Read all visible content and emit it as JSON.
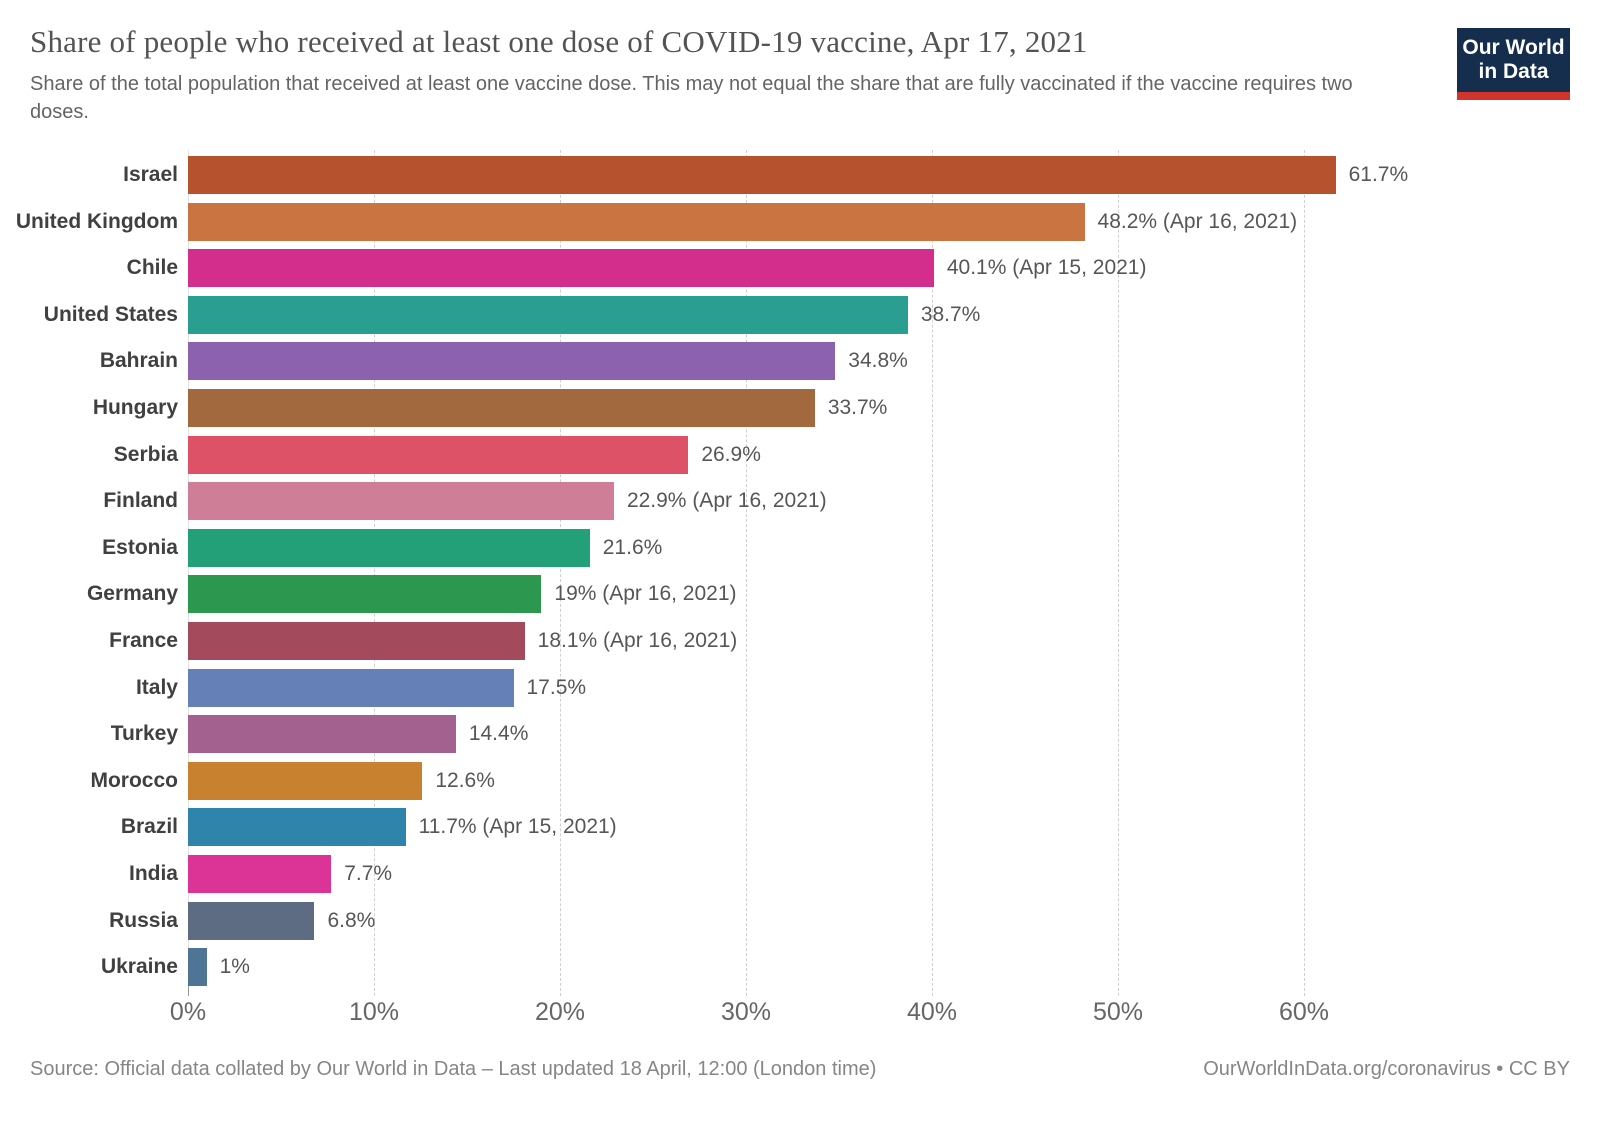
{
  "header": {
    "title": "Share of people who received at least one dose of COVID-19 vaccine, Apr 17, 2021",
    "subtitle": "Share of the total population that received at least one vaccine dose. This may not equal the share that are fully vaccinated if the vaccine requires two doses.",
    "logo": {
      "line1": "Our World",
      "line2": "in Data",
      "bg_color": "#152e4e",
      "accent_color": "#d0342c"
    }
  },
  "chart_data": {
    "type": "bar",
    "orientation": "horizontal",
    "title": "Share of people who received at least one dose of COVID-19 vaccine, Apr 17, 2021",
    "xlabel": "",
    "ylabel": "",
    "xlim": [
      0,
      65
    ],
    "grid": "vertical-dashed",
    "x_axis": {
      "tick_labels": [
        "0%",
        "10%",
        "20%",
        "30%",
        "40%",
        "50%",
        "60%"
      ],
      "tick_values": [
        0,
        10,
        20,
        30,
        40,
        50,
        60
      ]
    },
    "bars": [
      {
        "label": "Israel",
        "value": 61.7,
        "value_label": "61.7%",
        "color": "#b6532e"
      },
      {
        "label": "United Kingdom",
        "value": 48.2,
        "value_label": "48.2% (Apr 16, 2021)",
        "color": "#ca7441"
      },
      {
        "label": "Chile",
        "value": 40.1,
        "value_label": "40.1% (Apr 15, 2021)",
        "color": "#d42e8d"
      },
      {
        "label": "United States",
        "value": 38.7,
        "value_label": "38.7%",
        "color": "#2b9e92"
      },
      {
        "label": "Bahrain",
        "value": 34.8,
        "value_label": "34.8%",
        "color": "#8c62ae"
      },
      {
        "label": "Hungary",
        "value": 33.7,
        "value_label": "33.7%",
        "color": "#a2693f"
      },
      {
        "label": "Serbia",
        "value": 26.9,
        "value_label": "26.9%",
        "color": "#dd5266"
      },
      {
        "label": "Finland",
        "value": 22.9,
        "value_label": "22.9% (Apr 16, 2021)",
        "color": "#ce7e97"
      },
      {
        "label": "Estonia",
        "value": 21.6,
        "value_label": "21.6%",
        "color": "#23a077"
      },
      {
        "label": "Germany",
        "value": 19,
        "value_label": "19% (Apr 16, 2021)",
        "color": "#2c974e"
      },
      {
        "label": "France",
        "value": 18.1,
        "value_label": "18.1% (Apr 16, 2021)",
        "color": "#a34b5c"
      },
      {
        "label": "Italy",
        "value": 17.5,
        "value_label": "17.5%",
        "color": "#6480b7"
      },
      {
        "label": "Turkey",
        "value": 14.4,
        "value_label": "14.4%",
        "color": "#a2618e"
      },
      {
        "label": "Morocco",
        "value": 12.6,
        "value_label": "12.6%",
        "color": "#c8822f"
      },
      {
        "label": "Brazil",
        "value": 11.7,
        "value_label": "11.7% (Apr 15, 2021)",
        "color": "#2f84ab"
      },
      {
        "label": "India",
        "value": 7.7,
        "value_label": "7.7%",
        "color": "#dc3396"
      },
      {
        "label": "Russia",
        "value": 6.8,
        "value_label": "6.8%",
        "color": "#5d6c83"
      },
      {
        "label": "Ukraine",
        "value": 1,
        "value_label": "1%",
        "color": "#4f7596"
      }
    ]
  },
  "footer": {
    "source": "Source: Official data collated by Our World in Data – Last updated 18 April, 12:00 (London time)",
    "link": "OurWorldInData.org/coronavirus • CC BY"
  }
}
